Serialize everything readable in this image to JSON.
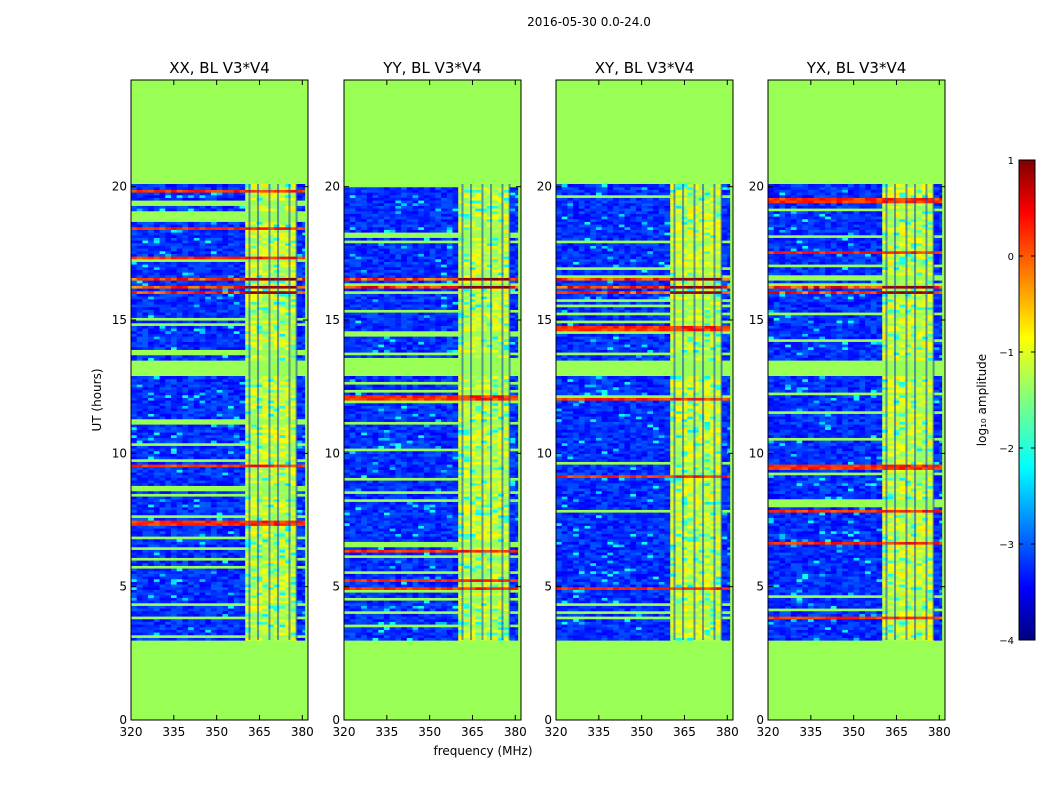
{
  "figure": {
    "suptitle": "2016-05-30 0.0-24.0",
    "xlabel": "frequency (MHz)",
    "ylabel": "UT (hours)",
    "colorbar_label": "log₁₀ amplitude",
    "colorbar_ticks": [
      "1",
      "0",
      "−1",
      "−2",
      "−3",
      "−4"
    ]
  },
  "chart_data": [
    {
      "type": "heatmap",
      "title": "XX, BL V3*V4",
      "xlim": [
        320,
        382
      ],
      "ylim": [
        0,
        24
      ],
      "xticks": [
        320,
        335,
        350,
        365,
        380
      ],
      "xtick_labels": [
        "320",
        "335",
        "350",
        "365",
        "380"
      ],
      "yticks": [
        0,
        5,
        10,
        15,
        20
      ],
      "ytick_labels": [
        "0",
        "5",
        "10",
        "15",
        "20"
      ],
      "color_range": [
        -4,
        1
      ],
      "data_window_hours": [
        3.0,
        20.1
      ],
      "gap_hours": [
        12.9,
        13.5
      ],
      "bright_band_mhz": [
        359.5,
        378
      ],
      "hot_rows_hours": [
        16.0,
        16.2,
        16.5
      ],
      "show_ylabel": true,
      "show_xlabel": false
    },
    {
      "type": "heatmap",
      "title": "YY, BL V3*V4",
      "xlim": [
        320,
        382
      ],
      "ylim": [
        0,
        24
      ],
      "xticks": [
        320,
        335,
        350,
        365,
        380
      ],
      "xtick_labels": [
        "320",
        "335",
        "350",
        "365",
        "380"
      ],
      "yticks": [
        0,
        5,
        10,
        15,
        20
      ],
      "ytick_labels": [
        "0",
        "5",
        "10",
        "15",
        "20"
      ],
      "color_range": [
        -4,
        1
      ],
      "data_window_hours": [
        3.0,
        20.1
      ],
      "gap_hours": [
        12.9,
        13.5
      ],
      "bright_band_mhz": [
        359.5,
        378
      ],
      "hot_rows_hours": [
        16.0,
        16.2,
        16.5
      ],
      "show_ylabel": false,
      "show_xlabel": true
    },
    {
      "type": "heatmap",
      "title": "XY, BL V3*V4",
      "xlim": [
        320,
        382
      ],
      "ylim": [
        0,
        24
      ],
      "xticks": [
        320,
        335,
        350,
        365,
        380
      ],
      "xtick_labels": [
        "320",
        "335",
        "350",
        "365",
        "380"
      ],
      "yticks": [
        0,
        5,
        10,
        15,
        20
      ],
      "ytick_labels": [
        "0",
        "5",
        "10",
        "15",
        "20"
      ],
      "color_range": [
        -4,
        1
      ],
      "data_window_hours": [
        3.0,
        20.1
      ],
      "gap_hours": [
        12.9,
        13.5
      ],
      "bright_band_mhz": [
        359.5,
        378
      ],
      "hot_rows_hours": [
        16.0,
        16.2,
        16.5
      ],
      "show_ylabel": false,
      "show_xlabel": false
    },
    {
      "type": "heatmap",
      "title": "YX, BL V3*V4",
      "xlim": [
        320,
        382
      ],
      "ylim": [
        0,
        24
      ],
      "xticks": [
        320,
        335,
        350,
        365,
        380
      ],
      "xtick_labels": [
        "320",
        "335",
        "350",
        "365",
        "380"
      ],
      "yticks": [
        0,
        5,
        10,
        15,
        20
      ],
      "ytick_labels": [
        "0",
        "5",
        "10",
        "15",
        "20"
      ],
      "color_range": [
        -4,
        1
      ],
      "data_window_hours": [
        3.0,
        20.1
      ],
      "gap_hours": [
        12.9,
        13.5
      ],
      "bright_band_mhz": [
        359.5,
        378
      ],
      "hot_rows_hours": [
        16.0,
        16.2,
        16.5
      ],
      "show_ylabel": false,
      "show_xlabel": false
    }
  ],
  "colors": {
    "background_fill": "#99ff55",
    "low": "#0a30e8",
    "hot": "#8b0000"
  }
}
